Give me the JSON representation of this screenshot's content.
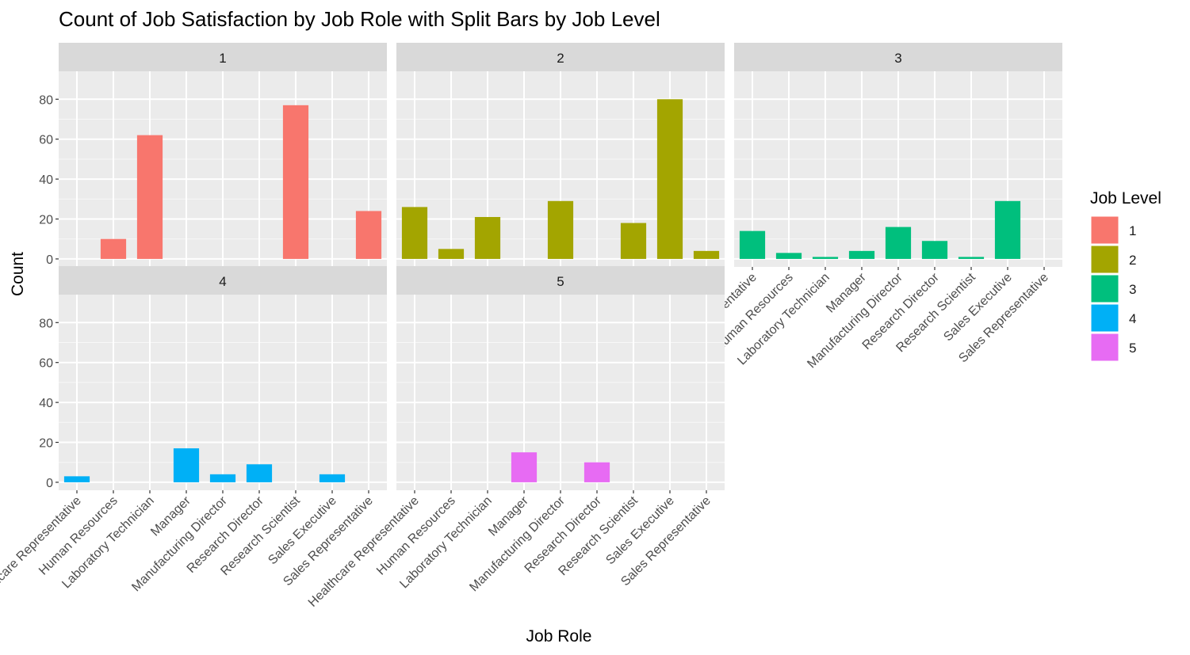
{
  "chart_data": {
    "type": "bar",
    "title": "Count of Job Satisfaction by Job Role with Split Bars by Job Level",
    "xlabel": "Job Role",
    "ylabel": "Count",
    "ylim": [
      -4,
      94
    ],
    "yticks": [
      0,
      20,
      40,
      60,
      80
    ],
    "grid": true,
    "legend_position": "right",
    "legend_title": "Job Level",
    "categories": [
      "Healthcare Representative",
      "Human Resources",
      "Laboratory Technician",
      "Manager",
      "Manufacturing Director",
      "Research Director",
      "Research Scientist",
      "Sales Executive",
      "Sales Representative"
    ],
    "series": [
      {
        "name": "1",
        "color": "#F8766D",
        "values": [
          0,
          10,
          62,
          0,
          0,
          0,
          77,
          0,
          24
        ]
      },
      {
        "name": "2",
        "color": "#A3A500",
        "values": [
          26,
          5,
          21,
          0,
          29,
          0,
          18,
          80,
          4
        ]
      },
      {
        "name": "3",
        "color": "#00BF7D",
        "values": [
          14,
          3,
          1,
          4,
          16,
          9,
          1,
          29,
          0
        ]
      },
      {
        "name": "4",
        "color": "#00B0F6",
        "values": [
          3,
          0,
          0,
          17,
          4,
          9,
          0,
          4,
          0
        ]
      },
      {
        "name": "5",
        "color": "#E76BF3",
        "values": [
          0,
          0,
          0,
          15,
          0,
          10,
          0,
          0,
          0
        ]
      }
    ]
  }
}
